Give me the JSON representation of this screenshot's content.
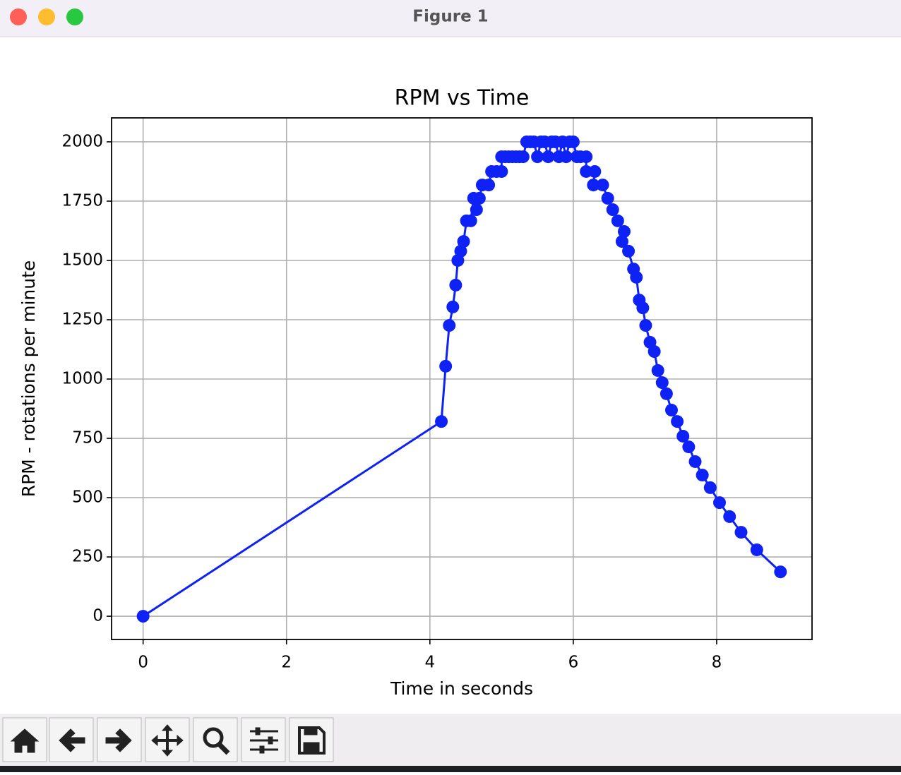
{
  "window": {
    "title": "Figure 1"
  },
  "chart_data": {
    "type": "line",
    "title": "RPM vs Time",
    "xlabel": "Time in seconds",
    "ylabel": "RPM - rotations per minute",
    "x": [
      0,
      4.16,
      4.22,
      4.27,
      4.32,
      4.36,
      4.39,
      4.43,
      4.47,
      4.51,
      4.57,
      4.61,
      4.65,
      4.69,
      4.73,
      4.82,
      4.86,
      4.93,
      5.0,
      5.0,
      5.05,
      5.1,
      5.15,
      5.2,
      5.25,
      5.3,
      5.35,
      5.4,
      5.45,
      5.5,
      5.55,
      5.6,
      5.65,
      5.7,
      5.75,
      5.8,
      5.85,
      5.9,
      5.95,
      6.0,
      6.05,
      6.1,
      6.18,
      6.18,
      6.3,
      6.28,
      6.41,
      6.48,
      6.55,
      6.62,
      6.71,
      6.68,
      6.77,
      6.84,
      6.88,
      6.92,
      6.97,
      7.01,
      7.07,
      7.13,
      7.18,
      7.24,
      7.3,
      7.37,
      7.45,
      7.53,
      7.61,
      7.7,
      7.8,
      7.91,
      8.04,
      8.18,
      8.34,
      8.56,
      8.89
    ],
    "series": [
      {
        "name": "RPM",
        "color": "#0f22f5",
        "values": [
          0,
          821,
          1054,
          1226,
          1304,
          1396,
          1500,
          1539,
          1580,
          1667,
          1667,
          1762,
          1714,
          1762,
          1818,
          1818,
          1875,
          1875,
          1875,
          1937,
          1937,
          1937,
          1937,
          1937,
          1937,
          1937,
          2000,
          2000,
          2000,
          1937,
          2000,
          2000,
          1937,
          2000,
          2000,
          1937,
          2000,
          1937,
          2000,
          2000,
          1937,
          1937,
          1937,
          1875,
          1875,
          1818,
          1818,
          1762,
          1714,
          1667,
          1622,
          1580,
          1539,
          1464,
          1429,
          1333,
          1300,
          1226,
          1155,
          1116,
          1036,
          985,
          938,
          869,
          821,
          759,
          714,
          652,
          595,
          542,
          479,
          420,
          354,
          280,
          187
        ]
      }
    ],
    "xlim": [
      -0.44,
      9.33
    ],
    "ylim": [
      -98,
      2101
    ],
    "xticks": [
      0,
      2,
      4,
      6,
      8
    ],
    "yticks": [
      0,
      250,
      500,
      750,
      1000,
      1250,
      1500,
      1750,
      2000
    ],
    "grid": true,
    "marker": true
  }
}
